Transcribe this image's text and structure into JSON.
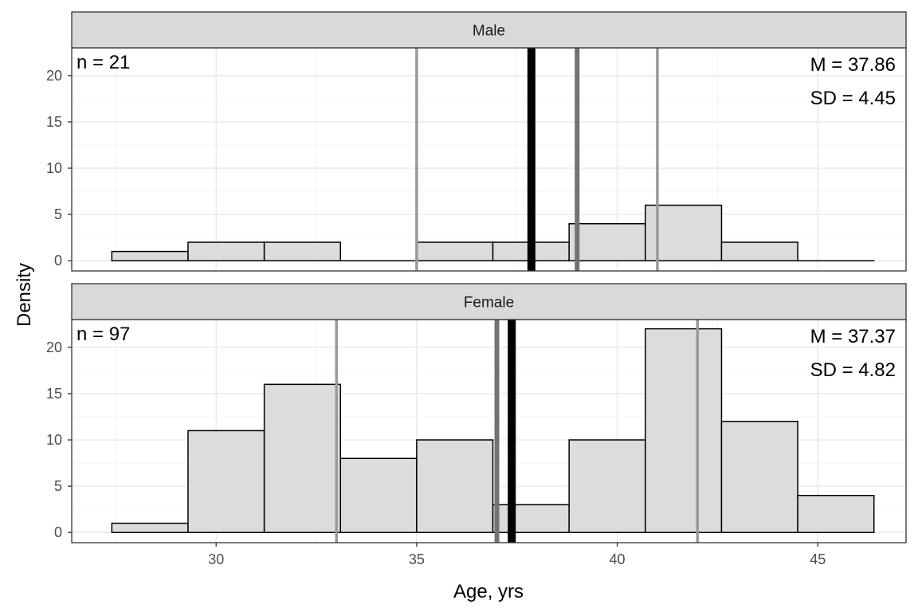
{
  "chart_data": {
    "type": "bar",
    "title": "",
    "xlabel": "Age, yrs",
    "ylabel": "Density",
    "xlim": [
      26.4,
      47.2
    ],
    "ylim": [
      -1.1,
      23.0
    ],
    "x_ticks": [
      30,
      35,
      40,
      45
    ],
    "y_ticks": [
      0,
      5,
      10,
      15,
      20
    ],
    "grid": true,
    "bin_edges": [
      27.4,
      29.3,
      31.2,
      33.1,
      35.0,
      36.9,
      38.8,
      40.7,
      42.6,
      44.5,
      46.4
    ],
    "panels": [
      {
        "label": "Male",
        "n_text": "n = 21",
        "mean_text": "M = 37.86",
        "sd_text": "SD = 4.45",
        "values": [
          1,
          2,
          2,
          0,
          2,
          2,
          4,
          6,
          2,
          0
        ],
        "mean": 37.86,
        "median": 39.0,
        "quartiles": [
          35.0,
          41.0
        ]
      },
      {
        "label": "Female",
        "n_text": "n = 97",
        "mean_text": "M = 37.37",
        "sd_text": "SD = 4.82",
        "values": [
          1,
          11,
          16,
          8,
          10,
          3,
          10,
          22,
          12,
          4
        ],
        "mean": 37.37,
        "median": 37.0,
        "quartiles": [
          33.0,
          42.0
        ]
      }
    ],
    "colors": {
      "bar_fill": "#dcdcdc",
      "bar_stroke": "#000000",
      "mean_line": "#000000",
      "median_line": "#737373",
      "quartile_line": "#9a9a9a",
      "strip_fill": "#d9d9d9",
      "grid_major": "#ebebeb",
      "grid_minor": "#f4f4f4"
    }
  }
}
